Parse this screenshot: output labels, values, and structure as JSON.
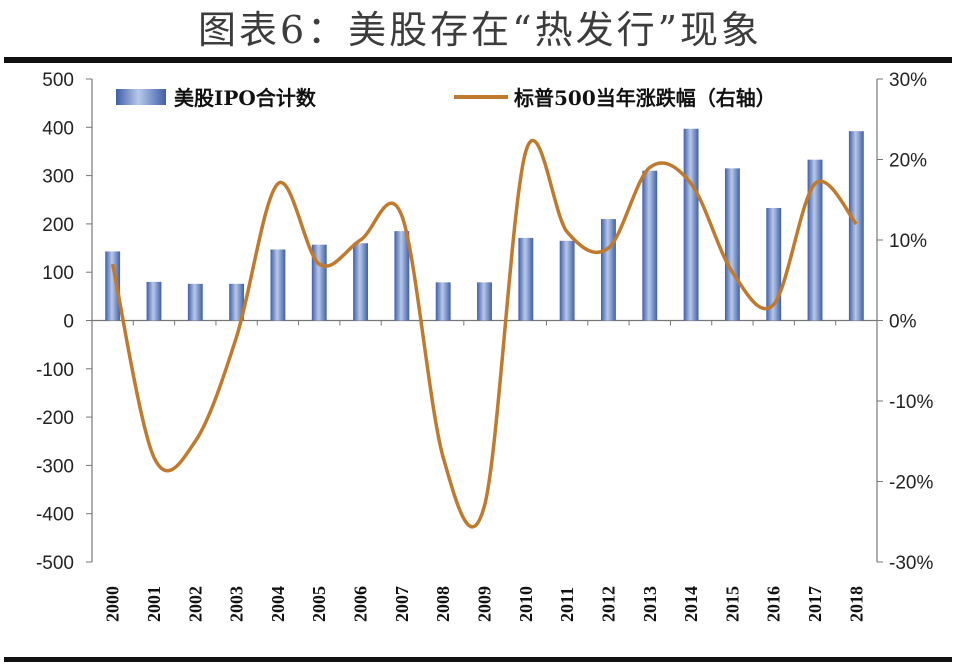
{
  "chart_data": {
    "type": "bar+line",
    "title": "图表6：美股存在“热发行”现象",
    "categories": [
      "2000",
      "2001",
      "2002",
      "2003",
      "2004",
      "2005",
      "2006",
      "2007",
      "2008",
      "2009",
      "2010",
      "2011",
      "2012",
      "2013",
      "2014",
      "2015",
      "2016",
      "2017",
      "2018"
    ],
    "series": [
      {
        "name": "美股IPO合计数",
        "type": "bar",
        "axis": "left",
        "values": [
          143,
          80,
          76,
          76,
          147,
          157,
          160,
          185,
          79,
          79,
          171,
          165,
          210,
          310,
          397,
          315,
          233,
          333,
          392
        ]
      },
      {
        "name": "标普500当年涨跌幅（右轴）",
        "type": "line",
        "axis": "right",
        "unit": "%",
        "values": [
          7,
          -17,
          -15,
          -2,
          17,
          7,
          10,
          13,
          -17,
          -23,
          21,
          11,
          9,
          19,
          17,
          6,
          2,
          17,
          12
        ]
      }
    ],
    "left_axis": {
      "ylim": [
        -500,
        500
      ],
      "ticks": [
        "500",
        "400",
        "300",
        "200",
        "100",
        "0",
        "-100",
        "-200",
        "-300",
        "-400",
        "-500"
      ]
    },
    "right_axis": {
      "ylim": [
        -30,
        30
      ],
      "ticks": [
        "30%",
        "20%",
        "10%",
        "0%",
        "-10%",
        "-20%",
        "-30%"
      ]
    },
    "legend": {
      "position": "top",
      "bar_label": "美股IPO合计数",
      "line_label": "标普500当年涨跌幅（右轴）"
    },
    "colors": {
      "bar": "#4a6fb5",
      "bar_light": "#8fa8d8",
      "line": "#c07a2e",
      "axis": "#666666"
    }
  }
}
